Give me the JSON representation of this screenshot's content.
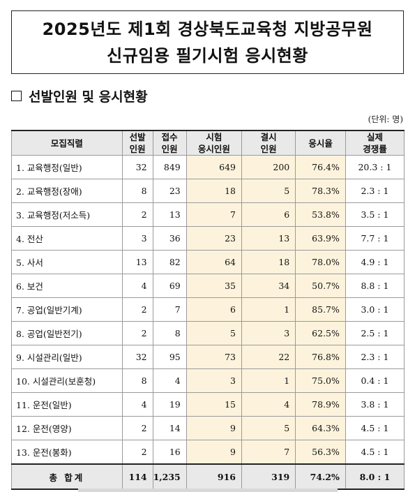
{
  "title": {
    "line1": "2025년도 제1회 경상북도교육청 지방공무원",
    "line2": "신규임용 필기시험 응시현황"
  },
  "section_title": "선발인원 및 응시현황",
  "unit": "(단위: 명)",
  "table": {
    "headers": {
      "job": "모집직렬",
      "selected_1": "선발",
      "selected_2": "인원",
      "applied_1": "접수",
      "applied_2": "인원",
      "exam_1": "시험",
      "exam_2": "응시인원",
      "absent_1": "결시",
      "absent_2": "인원",
      "rate": "응시율",
      "comp_1": "실제",
      "comp_2": "경쟁률"
    },
    "rows": [
      {
        "name": "1. 교육행정(일반)",
        "selected": "32",
        "applied": "849",
        "exam": "649",
        "absent": "200",
        "rate": "76.4%",
        "ratio": "20.3 : 1"
      },
      {
        "name": "2. 교육행정(장애)",
        "selected": "8",
        "applied": "23",
        "exam": "18",
        "absent": "5",
        "rate": "78.3%",
        "ratio": "2.3 : 1"
      },
      {
        "name": "3. 교육행정(저소득)",
        "selected": "2",
        "applied": "13",
        "exam": "7",
        "absent": "6",
        "rate": "53.8%",
        "ratio": "3.5 : 1"
      },
      {
        "name": "4. 전산",
        "selected": "3",
        "applied": "36",
        "exam": "23",
        "absent": "13",
        "rate": "63.9%",
        "ratio": "7.7 : 1"
      },
      {
        "name": "5. 사서",
        "selected": "13",
        "applied": "82",
        "exam": "64",
        "absent": "18",
        "rate": "78.0%",
        "ratio": "4.9 : 1"
      },
      {
        "name": "6. 보건",
        "selected": "4",
        "applied": "69",
        "exam": "35",
        "absent": "34",
        "rate": "50.7%",
        "ratio": "8.8 : 1"
      },
      {
        "name": "7. 공업(일반기계)",
        "selected": "2",
        "applied": "7",
        "exam": "6",
        "absent": "1",
        "rate": "85.7%",
        "ratio": "3.0 : 1"
      },
      {
        "name": "8. 공업(일반전기)",
        "selected": "2",
        "applied": "8",
        "exam": "5",
        "absent": "3",
        "rate": "62.5%",
        "ratio": "2.5 : 1"
      },
      {
        "name": "9. 시설관리(일반)",
        "selected": "32",
        "applied": "95",
        "exam": "73",
        "absent": "22",
        "rate": "76.8%",
        "ratio": "2.3 : 1"
      },
      {
        "name": "10. 시설관리(보훈청)",
        "selected": "8",
        "applied": "4",
        "exam": "3",
        "absent": "1",
        "rate": "75.0%",
        "ratio": "0.4 : 1"
      },
      {
        "name": "11. 운전(일반)",
        "selected": "4",
        "applied": "19",
        "exam": "15",
        "absent": "4",
        "rate": "78.9%",
        "ratio": "3.8 : 1"
      },
      {
        "name": "12. 운전(영양)",
        "selected": "2",
        "applied": "14",
        "exam": "9",
        "absent": "5",
        "rate": "64.3%",
        "ratio": "4.5 : 1"
      },
      {
        "name": "13. 운전(봉화)",
        "selected": "2",
        "applied": "16",
        "exam": "9",
        "absent": "7",
        "rate": "56.3%",
        "ratio": "4.5 : 1"
      }
    ],
    "total": {
      "name": "총 합계",
      "selected": "114",
      "applied": "1,235",
      "exam": "916",
      "absent": "319",
      "rate": "74.2%",
      "ratio": "8.0 : 1"
    }
  },
  "colors": {
    "highlight": "#fdf3dc",
    "header_bg": "#e9e9e9"
  }
}
